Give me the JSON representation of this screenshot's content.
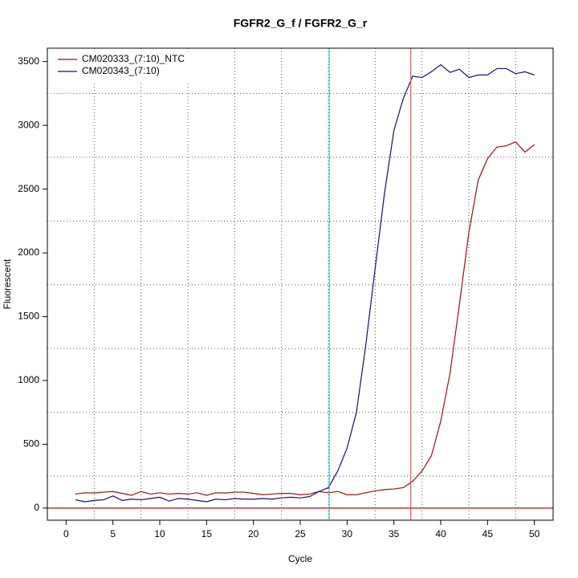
{
  "chart_data": {
    "type": "line",
    "title": "FGFR2_G_f / FGFR2_G_r",
    "x_label": "Cycle",
    "y_label": "Fluorescent",
    "x": [
      1,
      2,
      3,
      4,
      5,
      6,
      7,
      8,
      9,
      10,
      11,
      12,
      13,
      14,
      15,
      16,
      17,
      18,
      19,
      20,
      21,
      22,
      23,
      24,
      25,
      26,
      27,
      28,
      29,
      30,
      31,
      32,
      33,
      34,
      35,
      36,
      37,
      38,
      39,
      40,
      41,
      42,
      43,
      44,
      45,
      46,
      47,
      48,
      49,
      50
    ],
    "series": [
      {
        "name": "CM020333_(7:10)_NTC",
        "color": "#a01010",
        "values": [
          110,
          120,
          118,
          125,
          130,
          115,
          100,
          130,
          110,
          120,
          110,
          115,
          110,
          120,
          100,
          120,
          118,
          125,
          125,
          115,
          105,
          110,
          115,
          115,
          105,
          110,
          130,
          120,
          130,
          105,
          105,
          120,
          135,
          145,
          150,
          160,
          210,
          290,
          410,
          680,
          1060,
          1600,
          2160,
          2570,
          2740,
          2830,
          2840,
          2870,
          2790,
          2850
        ]
      },
      {
        "name": "CM020343_(7:10)",
        "color": "#10107a",
        "values": [
          65,
          50,
          60,
          65,
          95,
          60,
          70,
          65,
          75,
          85,
          55,
          75,
          70,
          60,
          50,
          70,
          65,
          75,
          70,
          70,
          75,
          70,
          80,
          85,
          80,
          90,
          130,
          160,
          290,
          470,
          750,
          1280,
          1880,
          2470,
          2960,
          3210,
          3385,
          3375,
          3420,
          3475,
          3415,
          3440,
          3375,
          3395,
          3395,
          3445,
          3445,
          3405,
          3420,
          3395
        ]
      }
    ],
    "xlim": [
      -2,
      52
    ],
    "ylim": [
      -95,
      3605
    ],
    "xticks": [
      0,
      5,
      10,
      15,
      20,
      25,
      30,
      35,
      40,
      45,
      50
    ],
    "yticks": [
      0,
      500,
      1000,
      1500,
      2000,
      2500,
      3000,
      3500
    ],
    "xgrid": [
      3,
      8,
      13,
      18,
      23,
      28,
      33,
      38,
      43,
      48
    ],
    "ygrid": [
      250,
      750,
      1250,
      1750,
      2250,
      2750,
      3250
    ],
    "vlines": [
      {
        "value": 28.1,
        "color": "#00e0e0"
      },
      {
        "value": 36.8,
        "color": "#d06060"
      }
    ],
    "hline": {
      "value": 0,
      "color": "#cc3030"
    },
    "legend": "top-left"
  }
}
